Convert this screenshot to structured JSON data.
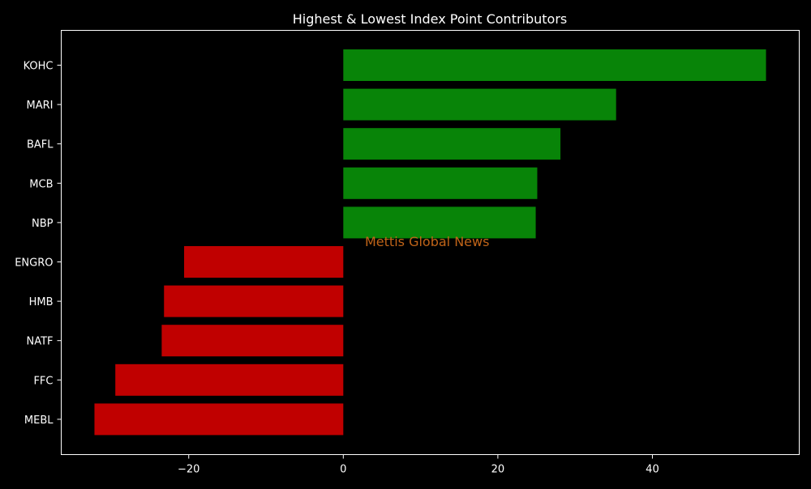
{
  "chart_data": {
    "type": "bar",
    "orientation": "horizontal",
    "title": "Highest & Lowest Index Point Contributors",
    "categories": [
      "KOHC",
      "MARI",
      "BAFL",
      "MCB",
      "NBP",
      "ENGRO",
      "HMB",
      "NATF",
      "FFC",
      "MEBL"
    ],
    "values": [
      54.7,
      35.3,
      28.1,
      25.1,
      24.9,
      -20.6,
      -23.2,
      -23.5,
      -29.5,
      -32.2
    ],
    "xlim": [
      -36.5,
      59.0
    ],
    "xticks": [
      -20,
      0,
      20,
      40
    ],
    "xtick_labels": [
      "−20",
      "0",
      "20",
      "40"
    ],
    "positive_color": "#088408",
    "negative_color": "#c00000",
    "background_color": "#000000",
    "text_color": "#ffffff",
    "grid": false,
    "legend": "none",
    "watermark": {
      "text": "Mettis Global News",
      "color": "#c06418"
    }
  }
}
